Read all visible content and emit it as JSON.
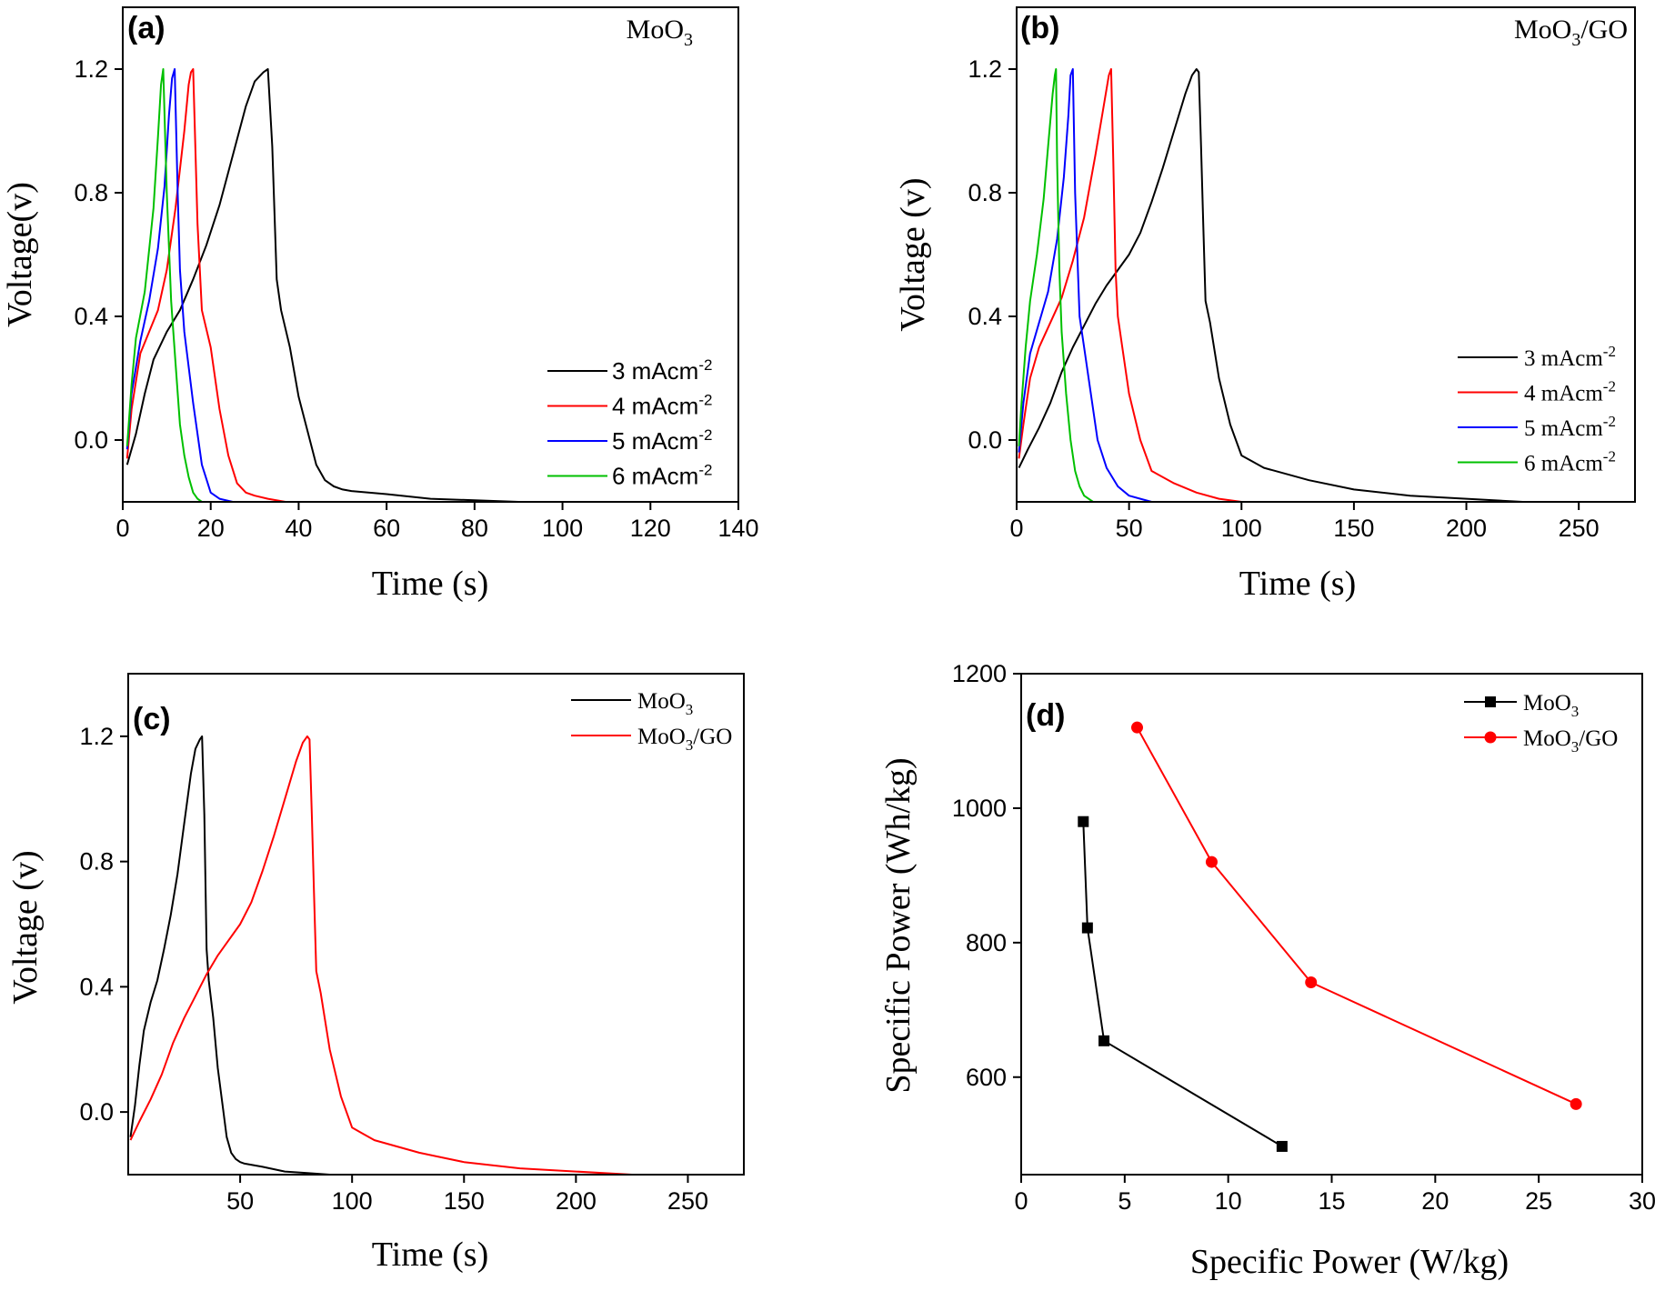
{
  "chart_data": [
    {
      "type": "line",
      "panel_label": "(a)",
      "title": "MoO",
      "title_sub": "3",
      "xlabel": "Time (s)",
      "ylabel": "Voltage(v)",
      "xlim": [
        0,
        140
      ],
      "ylim": [
        -0.2,
        1.4
      ],
      "xticks": [
        "0",
        "20",
        "40",
        "60",
        "80",
        "100",
        "120",
        "140"
      ],
      "yticks": [
        "0.0",
        "0.4",
        "0.8",
        "1.2"
      ],
      "legend_position": "bottom-right",
      "series": [
        {
          "name": "3 mAcm",
          "name_sup": "-2",
          "color": "#000000",
          "x": [
            1,
            3,
            5,
            7,
            10,
            13,
            16,
            19,
            22,
            25,
            28,
            30,
            32,
            33,
            34,
            35,
            36,
            38,
            40,
            42,
            44,
            46,
            48,
            50,
            52,
            60,
            70,
            80,
            90,
            100,
            110,
            120,
            123
          ],
          "y": [
            -0.08,
            0.02,
            0.15,
            0.26,
            0.35,
            0.42,
            0.52,
            0.63,
            0.76,
            0.92,
            1.08,
            1.16,
            1.19,
            1.2,
            0.95,
            0.52,
            0.42,
            0.3,
            0.14,
            0.03,
            -0.08,
            -0.13,
            -0.15,
            -0.16,
            -0.165,
            -0.175,
            -0.19,
            -0.195,
            -0.2,
            -0.2,
            -0.2,
            -0.2,
            -0.2
          ]
        },
        {
          "name": "4 mAcm",
          "name_sup": "-2",
          "color": "#ff0000",
          "x": [
            1,
            2,
            4,
            6,
            8,
            10,
            12,
            14,
            15,
            15.5,
            16,
            17,
            18,
            20,
            22,
            24,
            26,
            28,
            30,
            33,
            37
          ],
          "y": [
            -0.06,
            0.1,
            0.28,
            0.35,
            0.42,
            0.55,
            0.75,
            1.0,
            1.15,
            1.19,
            1.2,
            0.7,
            0.42,
            0.3,
            0.1,
            -0.05,
            -0.14,
            -0.17,
            -0.18,
            -0.19,
            -0.2
          ]
        },
        {
          "name": "5 mAcm",
          "name_sup": "-2",
          "color": "#0000ff",
          "x": [
            1,
            2,
            4,
            6,
            8,
            9.5,
            10.5,
            11.2,
            11.8,
            12.5,
            13,
            14,
            16,
            18,
            20,
            22,
            25
          ],
          "y": [
            -0.03,
            0.15,
            0.32,
            0.45,
            0.62,
            0.82,
            1.05,
            1.17,
            1.2,
            0.8,
            0.55,
            0.35,
            0.12,
            -0.08,
            -0.17,
            -0.19,
            -0.2
          ]
        },
        {
          "name": "6 mAcm",
          "name_sup": "-2",
          "color": "#00c000",
          "x": [
            1,
            2,
            3,
            5,
            7,
            8,
            8.7,
            9.2,
            10,
            11,
            12,
            13,
            14,
            15,
            16,
            17,
            18
          ],
          "y": [
            -0.02,
            0.18,
            0.33,
            0.48,
            0.75,
            0.98,
            1.15,
            1.2,
            0.8,
            0.45,
            0.25,
            0.05,
            -0.05,
            -0.12,
            -0.17,
            -0.19,
            -0.2
          ]
        }
      ]
    },
    {
      "type": "line",
      "panel_label": "(b)",
      "title": "MoO",
      "title_sub": "3",
      "title_suffix": "/GO",
      "xlabel": "Time (s)",
      "ylabel": "Voltage (v)",
      "xlim": [
        0,
        275
      ],
      "ylim": [
        -0.2,
        1.4
      ],
      "xticks": [
        "0",
        "50",
        "100",
        "150",
        "200",
        "250"
      ],
      "yticks": [
        "0.0",
        "0.4",
        "0.8",
        "1.2"
      ],
      "legend_position": "bottom-right",
      "series": [
        {
          "name": "3 mAcm",
          "name_sup": "-2",
          "color": "#000000",
          "x": [
            1,
            5,
            10,
            15,
            20,
            25,
            30,
            35,
            40,
            45,
            50,
            55,
            60,
            65,
            70,
            75,
            78,
            80,
            81,
            82,
            83,
            84,
            86,
            90,
            95,
            100,
            105,
            110,
            130,
            150,
            175,
            200,
            225,
            250
          ],
          "y": [
            -0.09,
            -0.03,
            0.04,
            0.12,
            0.22,
            0.3,
            0.37,
            0.44,
            0.5,
            0.55,
            0.6,
            0.67,
            0.77,
            0.88,
            1.0,
            1.12,
            1.18,
            1.2,
            1.19,
            0.95,
            0.7,
            0.45,
            0.38,
            0.2,
            0.05,
            -0.05,
            -0.07,
            -0.09,
            -0.13,
            -0.16,
            -0.18,
            -0.19,
            -0.2,
            -0.2
          ]
        },
        {
          "name": "4 mAcm",
          "name_sup": "-2",
          "color": "#ff0000",
          "x": [
            1,
            3,
            6,
            10,
            15,
            20,
            25,
            30,
            35,
            38,
            41,
            42,
            43,
            44,
            45,
            47,
            50,
            55,
            60,
            70,
            80,
            90,
            100,
            110
          ],
          "y": [
            -0.06,
            0.05,
            0.2,
            0.3,
            0.38,
            0.46,
            0.58,
            0.72,
            0.92,
            1.05,
            1.18,
            1.2,
            0.9,
            0.55,
            0.4,
            0.3,
            0.15,
            0.0,
            -0.1,
            -0.14,
            -0.17,
            -0.19,
            -0.2,
            -0.2
          ]
        },
        {
          "name": "5 mAcm",
          "name_sup": "-2",
          "color": "#0000ff",
          "x": [
            1,
            3,
            6,
            10,
            14,
            18,
            21,
            23,
            24,
            25,
            26,
            28,
            30,
            33,
            36,
            40,
            45,
            50,
            55,
            60
          ],
          "y": [
            -0.04,
            0.12,
            0.28,
            0.38,
            0.48,
            0.65,
            0.85,
            1.05,
            1.18,
            1.2,
            0.8,
            0.4,
            0.3,
            0.15,
            0.0,
            -0.09,
            -0.15,
            -0.18,
            -0.19,
            -0.2
          ]
        },
        {
          "name": "6 mAcm",
          "name_sup": "-2",
          "color": "#00c000",
          "x": [
            1,
            2,
            4,
            6,
            9,
            12,
            14,
            16,
            17,
            17.5,
            18,
            19,
            20,
            22,
            24,
            26,
            28,
            30,
            32,
            34
          ],
          "y": [
            -0.02,
            0.1,
            0.3,
            0.45,
            0.6,
            0.78,
            0.95,
            1.12,
            1.18,
            1.2,
            0.9,
            0.55,
            0.35,
            0.15,
            0.0,
            -0.1,
            -0.15,
            -0.18,
            -0.19,
            -0.2
          ]
        }
      ]
    },
    {
      "type": "line",
      "panel_label": "(c)",
      "xlabel": "Time (s)",
      "ylabel": "Voltage (v)",
      "xlim": [
        0,
        275
      ],
      "ylim": [
        -0.2,
        1.4
      ],
      "xticks": [
        "50",
        "100",
        "150",
        "200",
        "250"
      ],
      "yticks": [
        "0.0",
        "0.4",
        "0.8",
        "1.2"
      ],
      "legend_position": "top-right",
      "series": [
        {
          "name": "MoO",
          "name_sub": "3",
          "color": "#000000",
          "x": [
            1,
            3,
            5,
            7,
            10,
            13,
            16,
            19,
            22,
            25,
            28,
            30,
            32,
            33,
            34,
            35,
            36,
            38,
            40,
            42,
            44,
            46,
            48,
            50,
            52,
            60,
            70,
            80,
            90,
            100,
            110,
            120,
            123
          ],
          "y": [
            -0.08,
            0.02,
            0.15,
            0.26,
            0.35,
            0.42,
            0.52,
            0.63,
            0.76,
            0.92,
            1.08,
            1.16,
            1.19,
            1.2,
            0.95,
            0.52,
            0.42,
            0.3,
            0.14,
            0.03,
            -0.08,
            -0.13,
            -0.15,
            -0.16,
            -0.165,
            -0.175,
            -0.19,
            -0.195,
            -0.2,
            -0.2,
            -0.2,
            -0.2,
            -0.2
          ]
        },
        {
          "name": "MoO",
          "name_sub": "3",
          "name_suffix": "/GO",
          "color": "#ff0000",
          "x": [
            1,
            5,
            10,
            15,
            20,
            25,
            30,
            35,
            40,
            45,
            50,
            55,
            60,
            65,
            70,
            75,
            78,
            80,
            81,
            82,
            83,
            84,
            86,
            90,
            95,
            100,
            105,
            110,
            130,
            150,
            175,
            200,
            225,
            250
          ],
          "y": [
            -0.09,
            -0.03,
            0.04,
            0.12,
            0.22,
            0.3,
            0.37,
            0.44,
            0.5,
            0.55,
            0.6,
            0.67,
            0.77,
            0.88,
            1.0,
            1.12,
            1.18,
            1.2,
            1.19,
            0.95,
            0.7,
            0.45,
            0.38,
            0.2,
            0.05,
            -0.05,
            -0.07,
            -0.09,
            -0.13,
            -0.16,
            -0.18,
            -0.19,
            -0.2,
            -0.2
          ]
        }
      ]
    },
    {
      "type": "line",
      "panel_label": "(d)",
      "xlabel": "Specific Power (W/kg)",
      "ylabel": "Specific Power (Wh/kg)",
      "xlim": [
        0,
        30
      ],
      "ylim": [
        455,
        1200
      ],
      "xticks": [
        "0",
        "5",
        "10",
        "15",
        "20",
        "25",
        "30"
      ],
      "yticks": [
        "600",
        "800",
        "1000",
        "1200"
      ],
      "legend_position": "top-right",
      "series": [
        {
          "name": "MoO",
          "name_sub": "3",
          "color": "#000000",
          "marker": "square",
          "x": [
            3.0,
            3.2,
            4.0,
            12.6
          ],
          "y": [
            980,
            822,
            654,
            497
          ]
        },
        {
          "name": "MoO",
          "name_sub": "3",
          "name_suffix": "/GO",
          "color": "#ff0000",
          "marker": "circle",
          "x": [
            5.6,
            9.2,
            14.0,
            26.8
          ],
          "y": [
            1120,
            920,
            741,
            560
          ]
        }
      ]
    }
  ]
}
